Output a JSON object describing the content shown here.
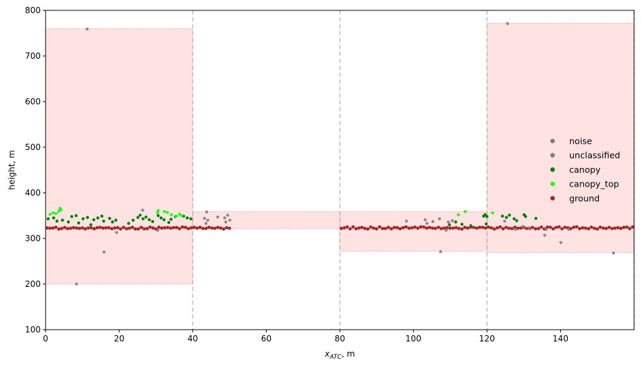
{
  "chart_data": {
    "type": "scatter",
    "title": "",
    "xlabel_main": "x",
    "xlabel_sub": "ATC",
    "xlabel_unit": ", m",
    "ylabel": "height, m",
    "xlim": [
      0,
      160
    ],
    "ylim": [
      100,
      800
    ],
    "xticks": [
      0,
      20,
      40,
      60,
      80,
      100,
      120,
      140
    ],
    "yticks": [
      100,
      200,
      300,
      400,
      500,
      600,
      700,
      800
    ],
    "grid": false,
    "legend_position": "center-right",
    "segment_boundaries": [
      40,
      80,
      120,
      160
    ],
    "windows": [
      {
        "x0": 0,
        "x1": 40,
        "y0": 200,
        "y1": 760
      },
      {
        "x0": 40,
        "x1": 80,
        "y0": 321,
        "y1": 359
      },
      {
        "x0": 80,
        "x1": 120,
        "y0": 272,
        "y1": 359
      },
      {
        "x0": 120,
        "x1": 160,
        "y0": 269,
        "y1": 772
      }
    ],
    "series": [
      {
        "name": "noise",
        "color": "#7f7f7f",
        "points": [
          [
            11.3,
            759
          ],
          [
            8.4,
            200
          ],
          [
            15.9,
            270
          ],
          [
            19.3,
            313
          ],
          [
            125.6,
            771
          ],
          [
            107.4,
            271
          ],
          [
            154.4,
            268
          ]
        ]
      },
      {
        "name": "unclassified",
        "color": "#7f7f7f",
        "points": [
          [
            26.4,
            362
          ],
          [
            30.5,
            318
          ],
          [
            43.8,
            358
          ],
          [
            43.2,
            344
          ],
          [
            44.1,
            340
          ],
          [
            43.6,
            333
          ],
          [
            46.8,
            347
          ],
          [
            48.7,
            345
          ],
          [
            49.5,
            351
          ],
          [
            50.1,
            340
          ],
          [
            49.0,
            336
          ],
          [
            98.1,
            338
          ],
          [
            103.2,
            341
          ],
          [
            103.7,
            333
          ],
          [
            105.3,
            337
          ],
          [
            107.1,
            343
          ],
          [
            109.5,
            336
          ],
          [
            108.9,
            318
          ],
          [
            110.6,
            339
          ],
          [
            124.8,
            338
          ],
          [
            127.7,
            320
          ],
          [
            129.8,
            326
          ],
          [
            131.4,
            323
          ],
          [
            135.7,
            307
          ],
          [
            136.1,
            320
          ],
          [
            140.1,
            291
          ],
          [
            142.2,
            320
          ]
        ]
      },
      {
        "name": "canopy",
        "color": "#008000",
        "points": [
          [
            0.7,
            343
          ],
          [
            2.2,
            345
          ],
          [
            3.1,
            338
          ],
          [
            4.6,
            340
          ],
          [
            6.2,
            336
          ],
          [
            7.1,
            348
          ],
          [
            8.3,
            350
          ],
          [
            9.0,
            334
          ],
          [
            10.2,
            343
          ],
          [
            11.4,
            346
          ],
          [
            12.3,
            330
          ],
          [
            13.1,
            341
          ],
          [
            14.2,
            345
          ],
          [
            15.3,
            349
          ],
          [
            15.8,
            338
          ],
          [
            17.4,
            344
          ],
          [
            18.2,
            336
          ],
          [
            19.1,
            340
          ],
          [
            22.6,
            333
          ],
          [
            23.8,
            340
          ],
          [
            25.1,
            346
          ],
          [
            25.7,
            351
          ],
          [
            26.5,
            343
          ],
          [
            27.3,
            347
          ],
          [
            28.2,
            341
          ],
          [
            29.1,
            337
          ],
          [
            30.6,
            350
          ],
          [
            31.4,
            345
          ],
          [
            32.2,
            341
          ],
          [
            33.5,
            335
          ],
          [
            34.1,
            342
          ],
          [
            35.3,
            348
          ],
          [
            37.5,
            349
          ],
          [
            38.5,
            345
          ],
          [
            39.5,
            343
          ],
          [
            109.8,
            330
          ],
          [
            111.5,
            336
          ],
          [
            113.2,
            331
          ],
          [
            115.6,
            328
          ],
          [
            119.1,
            349
          ],
          [
            119.5,
            352
          ],
          [
            120.0,
            348
          ],
          [
            119.8,
            332
          ],
          [
            124.2,
            349
          ],
          [
            125.3,
            346
          ],
          [
            126.1,
            351
          ],
          [
            127.4,
            343
          ],
          [
            128.1,
            339
          ],
          [
            130.1,
            352
          ],
          [
            130.5,
            348
          ],
          [
            133.3,
            344
          ]
        ]
      },
      {
        "name": "canopy_top",
        "color": "#1aff1a",
        "points": [
          [
            1.2,
            353
          ],
          [
            2.0,
            356
          ],
          [
            2.8,
            355
          ],
          [
            3.6,
            360
          ],
          [
            4.2,
            363
          ],
          [
            3.9,
            366
          ],
          [
            30.4,
            356
          ],
          [
            30.6,
            361
          ],
          [
            32.3,
            359
          ],
          [
            33.1,
            357
          ],
          [
            34.2,
            352
          ],
          [
            35.5,
            349
          ],
          [
            36.4,
            353
          ],
          [
            37.0,
            350
          ],
          [
            112.2,
            352
          ],
          [
            114.1,
            359
          ],
          [
            121.5,
            356
          ]
        ]
      },
      {
        "name": "ground",
        "color": "#a52a2a",
        "points": []
      }
    ],
    "ground_line": {
      "y": 323,
      "x_ranges": [
        [
          0,
          50
        ],
        [
          80,
          160
        ]
      ],
      "step": 0.8
    }
  }
}
